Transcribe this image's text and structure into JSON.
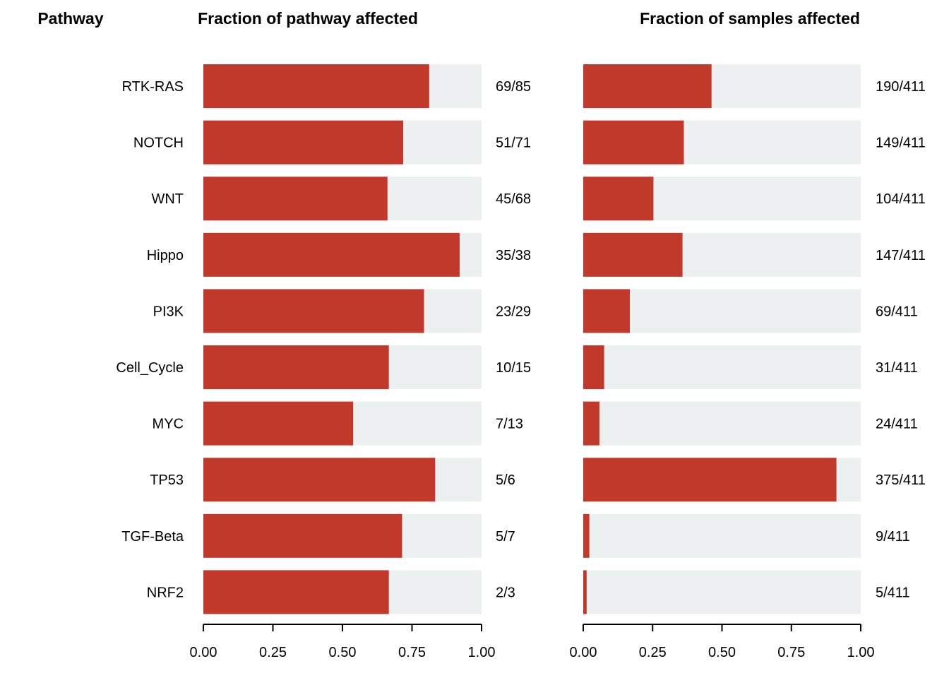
{
  "headers": {
    "pathway": "Pathway",
    "left": "Fraction of pathway affected",
    "right": "Fraction of samples affected"
  },
  "colors": {
    "affected": "#c0392b",
    "background": "#ecf0f1"
  },
  "chart_data": {
    "type": "bar",
    "orientation": "horizontal",
    "categories": [
      "RTK-RAS",
      "NOTCH",
      "WNT",
      "Hippo",
      "PI3K",
      "Cell_Cycle",
      "MYC",
      "TP53",
      "TGF-Beta",
      "NRF2"
    ],
    "panels": [
      {
        "title": "Fraction of pathway affected",
        "values": [
          0.8118,
          0.7183,
          0.6618,
          0.9211,
          0.7931,
          0.6667,
          0.5385,
          0.8333,
          0.7143,
          0.6667
        ],
        "labels": [
          "69/85",
          "51/71",
          "45/68",
          "35/38",
          "23/29",
          "10/15",
          "7/13",
          "5/6",
          "5/7",
          "2/3"
        ],
        "xlim": [
          0,
          1
        ],
        "ticks": [
          "0.00",
          "0.25",
          "0.50",
          "0.75",
          "1.00"
        ]
      },
      {
        "title": "Fraction of samples affected",
        "values": [
          0.4623,
          0.3625,
          0.253,
          0.3577,
          0.1679,
          0.0754,
          0.0584,
          0.9124,
          0.0219,
          0.0122
        ],
        "labels": [
          "190/411",
          "149/411",
          "104/411",
          "147/411",
          "69/411",
          "31/411",
          "24/411",
          "375/411",
          "9/411",
          "5/411"
        ],
        "xlim": [
          0,
          1
        ],
        "ticks": [
          "0.00",
          "0.25",
          "0.50",
          "0.75",
          "1.00"
        ]
      }
    ]
  }
}
